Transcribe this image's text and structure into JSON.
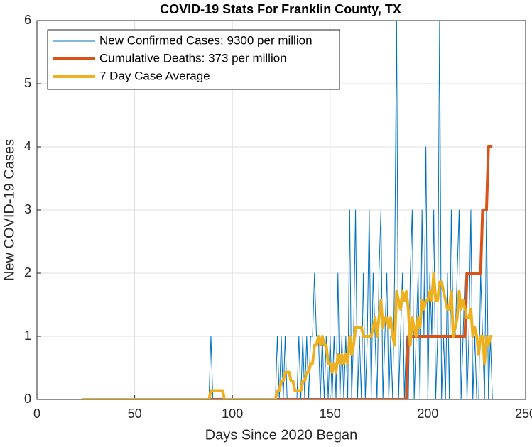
{
  "chart_data": {
    "type": "line",
    "title": "COVID-19 Stats For Franklin County, TX",
    "xlabel": "Days Since 2020 Began",
    "ylabel": "New COVID-19 Cases",
    "xlim": [
      0,
      250
    ],
    "xticks": [
      0,
      50,
      100,
      150,
      200,
      250
    ],
    "ylim": [
      0,
      6
    ],
    "yticks": [
      0,
      1,
      2,
      3,
      4,
      5,
      6
    ],
    "grid": true,
    "legend": "upper left",
    "x": [
      23,
      24,
      25,
      26,
      27,
      28,
      29,
      30,
      31,
      32,
      33,
      34,
      35,
      36,
      37,
      38,
      39,
      40,
      41,
      42,
      43,
      44,
      45,
      46,
      47,
      48,
      49,
      50,
      51,
      52,
      53,
      54,
      55,
      56,
      57,
      58,
      59,
      60,
      61,
      62,
      63,
      64,
      65,
      66,
      67,
      68,
      69,
      70,
      71,
      72,
      73,
      74,
      75,
      76,
      77,
      78,
      79,
      80,
      81,
      82,
      83,
      84,
      85,
      86,
      87,
      88,
      89,
      90,
      91,
      92,
      93,
      94,
      95,
      96,
      97,
      98,
      99,
      100,
      101,
      102,
      103,
      104,
      105,
      106,
      107,
      108,
      109,
      110,
      111,
      112,
      113,
      114,
      115,
      116,
      117,
      118,
      119,
      120,
      121,
      122,
      123,
      124,
      125,
      126,
      127,
      128,
      129,
      130,
      131,
      132,
      133,
      134,
      135,
      136,
      137,
      138,
      139,
      140,
      141,
      142,
      143,
      144,
      145,
      146,
      147,
      148,
      149,
      150,
      151,
      152,
      153,
      154,
      155,
      156,
      157,
      158,
      159,
      160,
      161,
      162,
      163,
      164,
      165,
      166,
      167,
      168,
      169,
      170,
      171,
      172,
      173,
      174,
      175,
      176,
      177,
      178,
      179,
      180,
      181,
      182,
      183,
      184,
      185,
      186,
      187,
      188,
      189,
      190,
      191,
      192,
      193,
      194,
      195,
      196,
      197,
      198,
      199,
      200,
      201,
      202,
      203,
      204,
      205,
      206,
      207,
      208,
      209,
      210,
      211,
      212,
      213,
      214,
      215,
      216,
      217,
      218,
      219,
      220,
      221,
      222,
      223,
      224,
      225,
      226,
      227,
      228,
      229,
      230,
      231,
      232,
      233
    ],
    "series": [
      {
        "name": "New Confirmed Cases: 9300 per million",
        "color": "#0072BD",
        "width": 1,
        "values": [
          0,
          0,
          0,
          0,
          0,
          0,
          0,
          0,
          0,
          0,
          0,
          0,
          0,
          0,
          0,
          0,
          0,
          0,
          0,
          0,
          0,
          0,
          0,
          0,
          0,
          0,
          0,
          0,
          0,
          0,
          0,
          0,
          0,
          0,
          0,
          0,
          0,
          0,
          0,
          0,
          0,
          0,
          0,
          0,
          0,
          0,
          0,
          0,
          0,
          0,
          0,
          0,
          0,
          0,
          0,
          0,
          0,
          0,
          0,
          0,
          0,
          0,
          0,
          0,
          0,
          0,
          1,
          0,
          0,
          0,
          0,
          0,
          0,
          0,
          0,
          0,
          0,
          0,
          0,
          0,
          0,
          0,
          0,
          0,
          0,
          0,
          0,
          0,
          0,
          0,
          0,
          0,
          0,
          0,
          0,
          0,
          0,
          0,
          0,
          0,
          1,
          0,
          1,
          0,
          1,
          0,
          0,
          0,
          0,
          0,
          0,
          1,
          0,
          1,
          0,
          1,
          0,
          1,
          1,
          2,
          1,
          1,
          0,
          1,
          0,
          1,
          0,
          1,
          0,
          1,
          0,
          2,
          0,
          1,
          0,
          1,
          0,
          3,
          0,
          1,
          3,
          0,
          1,
          0,
          2,
          0,
          1,
          3,
          0,
          2,
          1,
          0,
          2,
          3,
          0,
          1,
          2,
          0,
          1,
          0,
          2,
          6,
          0,
          1,
          2,
          0,
          1,
          0,
          2,
          3,
          0,
          1,
          2,
          0,
          3,
          1,
          4,
          0,
          2,
          1,
          3,
          0,
          1,
          6,
          0,
          1,
          0,
          2,
          0,
          3,
          1,
          1,
          2,
          3,
          0,
          1,
          2,
          0,
          1,
          3,
          0,
          1,
          0,
          0,
          2,
          1,
          0,
          3,
          0,
          1,
          0
        ]
      },
      {
        "name": "Cumulative Deaths: 373 per million",
        "color": "#D95319",
        "width": 4,
        "values": [
          0,
          0,
          0,
          0,
          0,
          0,
          0,
          0,
          0,
          0,
          0,
          0,
          0,
          0,
          0,
          0,
          0,
          0,
          0,
          0,
          0,
          0,
          0,
          0,
          0,
          0,
          0,
          0,
          0,
          0,
          0,
          0,
          0,
          0,
          0,
          0,
          0,
          0,
          0,
          0,
          0,
          0,
          0,
          0,
          0,
          0,
          0,
          0,
          0,
          0,
          0,
          0,
          0,
          0,
          0,
          0,
          0,
          0,
          0,
          0,
          0,
          0,
          0,
          0,
          0,
          0,
          0,
          0,
          0,
          0,
          0,
          0,
          0,
          0,
          0,
          0,
          0,
          0,
          0,
          0,
          0,
          0,
          0,
          0,
          0,
          0,
          0,
          0,
          0,
          0,
          0,
          0,
          0,
          0,
          0,
          0,
          0,
          0,
          0,
          0,
          0,
          0,
          0,
          0,
          0,
          0,
          0,
          0,
          0,
          0,
          0,
          0,
          0,
          0,
          0,
          0,
          0,
          0,
          0,
          0,
          0,
          0,
          0,
          0,
          0,
          0,
          0,
          0,
          0,
          0,
          0,
          0,
          0,
          0,
          0,
          0,
          0,
          0,
          0,
          0,
          0,
          0,
          0,
          0,
          0,
          0,
          0,
          0,
          0,
          0,
          0,
          0,
          0,
          0,
          0,
          0,
          0,
          0,
          0,
          0,
          0,
          0,
          0,
          0,
          0,
          0,
          0,
          1,
          1,
          1,
          1,
          1,
          1,
          1,
          1,
          1,
          1,
          1,
          1,
          1,
          1,
          1,
          1,
          1,
          1,
          1,
          1,
          1,
          1,
          1,
          1,
          1,
          1,
          1,
          1,
          1,
          1,
          2,
          2,
          2,
          2,
          2,
          2,
          2,
          2,
          3,
          3,
          3,
          4,
          4,
          4
        ]
      },
      {
        "name": "7 Day Case Average",
        "color": "#EDB120",
        "width": 4,
        "values": [
          0,
          0,
          0,
          0,
          0,
          0,
          0,
          0,
          0,
          0,
          0,
          0,
          0,
          0,
          0,
          0,
          0,
          0,
          0,
          0,
          0,
          0,
          0,
          0,
          0,
          0,
          0,
          0,
          0,
          0,
          0,
          0,
          0,
          0,
          0,
          0,
          0,
          0,
          0,
          0,
          0,
          0,
          0,
          0,
          0,
          0,
          0,
          0,
          0,
          0,
          0,
          0,
          0,
          0,
          0,
          0,
          0,
          0,
          0,
          0,
          0,
          0,
          0,
          0,
          0,
          0,
          0.14,
          0.14,
          0.14,
          0.14,
          0.14,
          0.14,
          0.14,
          0,
          0,
          0,
          0,
          0,
          0,
          0,
          0,
          0,
          0,
          0,
          0,
          0,
          0,
          0,
          0,
          0,
          0,
          0,
          0,
          0,
          0,
          0,
          0,
          0,
          0,
          0,
          0.14,
          0.14,
          0.29,
          0.29,
          0.43,
          0.43,
          0.43,
          0.29,
          0.29,
          0.14,
          0.14,
          0.14,
          0.14,
          0.29,
          0.29,
          0.43,
          0.43,
          0.57,
          0.57,
          0.86,
          0.86,
          1,
          0.86,
          1,
          0.86,
          0.86,
          0.57,
          0.57,
          0.43,
          0.57,
          0.43,
          0.71,
          0.57,
          0.71,
          0.57,
          0.71,
          0.57,
          1,
          0.71,
          0.86,
          1.14,
          1.14,
          1.14,
          1.14,
          1,
          1,
          1,
          1,
          1,
          1.14,
          1.29,
          1,
          1.29,
          1.57,
          1.14,
          1.29,
          1.29,
          1.14,
          1.29,
          1,
          0.86,
          1.71,
          1.57,
          1.43,
          1.71,
          1.57,
          1.71,
          1.43,
          0.86,
          1.29,
          1.14,
          1,
          1.29,
          1.14,
          1.57,
          1.43,
          1.57,
          1.57,
          1.71,
          1.57,
          2,
          1.57,
          1.57,
          1.86,
          1.86,
          1.71,
          1.57,
          1.43,
          1.43,
          1.71,
          1,
          1.14,
          1.29,
          1.71,
          1.43,
          1.57,
          1.43,
          1.29,
          1.29,
          1.43,
          1,
          1.14,
          1,
          0.71,
          1,
          1,
          0.57,
          1,
          0.86,
          1,
          1
        ]
      }
    ]
  }
}
